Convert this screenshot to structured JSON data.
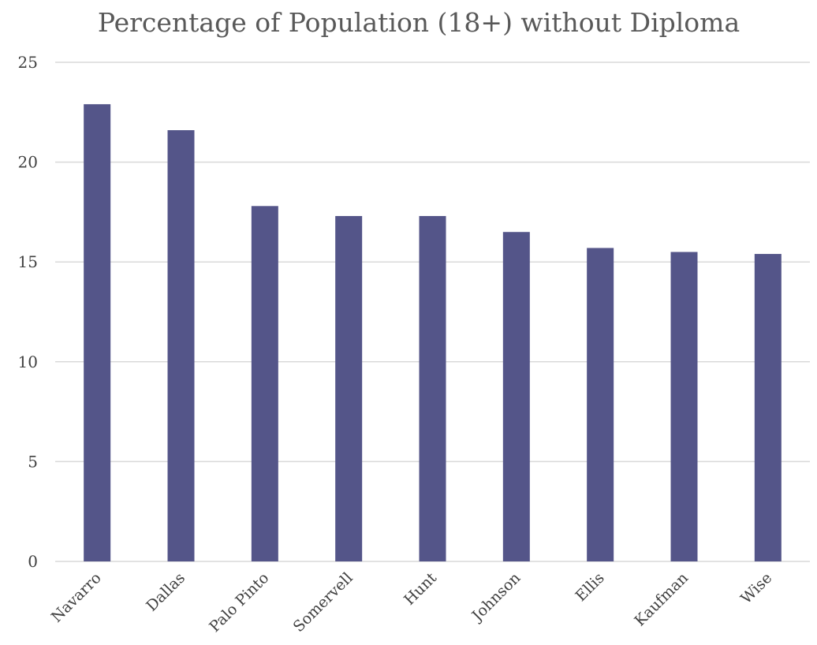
{
  "chart_data": {
    "type": "bar",
    "title": "Percentage of Population (18+) without Diploma",
    "categories": [
      "Navarro",
      "Dallas",
      "Palo Pinto",
      "Somervell",
      "Hunt",
      "Johnson",
      "Ellis",
      "Kaufman",
      "Wise"
    ],
    "values": [
      22.9,
      21.6,
      17.8,
      17.3,
      17.3,
      16.5,
      15.7,
      15.5,
      15.4
    ],
    "ylim": [
      0,
      25
    ],
    "yticks": [
      "0",
      "5",
      "10",
      "15",
      "20",
      "25"
    ],
    "grid": true,
    "bar_color": "#545589",
    "legend": "none"
  }
}
